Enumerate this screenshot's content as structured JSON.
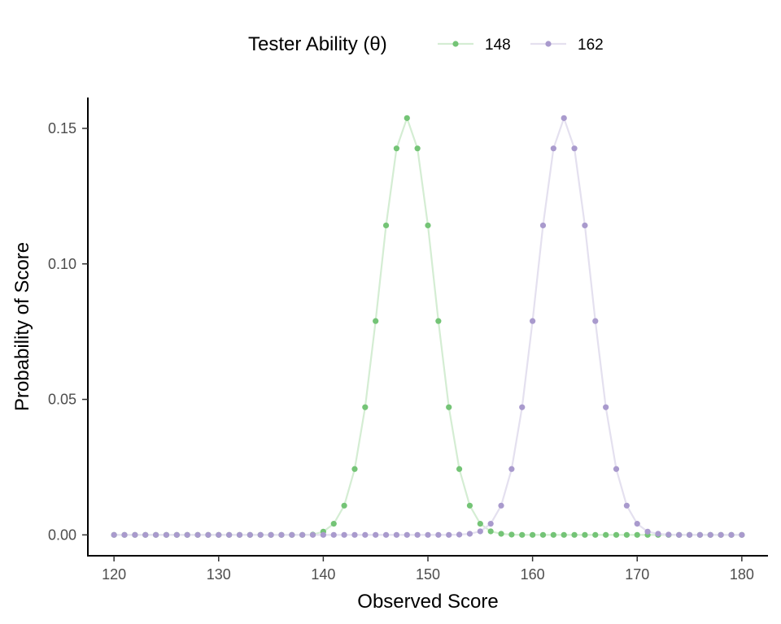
{
  "chart_data": {
    "type": "line",
    "xlabel": "Observed Score",
    "ylabel": "Probability of Score",
    "xlim": [
      117.5,
      182.5
    ],
    "ylim": [
      -0.0077,
      0.1614
    ],
    "x_ticks": [
      120,
      130,
      140,
      150,
      160,
      170,
      180
    ],
    "x_tick_labels": [
      "120",
      "130",
      "140",
      "150",
      "160",
      "170",
      "180"
    ],
    "y_ticks": [
      0,
      0.05,
      0.1,
      0.15
    ],
    "y_tick_labels": [
      "0.00",
      "0.05",
      "0.10",
      "0.15"
    ],
    "grid": false,
    "legend": {
      "title": "Tester Ability (θ)",
      "position": "top"
    },
    "x": [
      120,
      121,
      122,
      123,
      124,
      125,
      126,
      127,
      128,
      129,
      130,
      131,
      132,
      133,
      134,
      135,
      136,
      137,
      138,
      139,
      140,
      141,
      142,
      143,
      144,
      145,
      146,
      147,
      148,
      149,
      150,
      151,
      152,
      153,
      154,
      155,
      156,
      157,
      158,
      159,
      160,
      161,
      162,
      163,
      164,
      165,
      166,
      167,
      168,
      169,
      170,
      171,
      172,
      173,
      174,
      175,
      176,
      177,
      178,
      179,
      180
    ],
    "series": [
      {
        "name": "148",
        "line_color": "#d4edd3",
        "point_color": "#74c476",
        "values": [
          0,
          0,
          0,
          0,
          0,
          0,
          0,
          0,
          0,
          0,
          0,
          0,
          0,
          0,
          0,
          0,
          0,
          0,
          0,
          0.0001,
          0.0012,
          0.0041,
          0.0108,
          0.0243,
          0.0471,
          0.0789,
          0.1142,
          0.1426,
          0.1538,
          0.1426,
          0.1142,
          0.0789,
          0.0471,
          0.0243,
          0.0108,
          0.0041,
          0.0013,
          0.0004,
          0.0001,
          0,
          0,
          0,
          0,
          0,
          0,
          0,
          0,
          0,
          0,
          0,
          0,
          0,
          0,
          0,
          0,
          0,
          0,
          0,
          0,
          0,
          0
        ]
      },
      {
        "name": "162",
        "line_color": "#e4e0ef",
        "point_color": "#a99acd",
        "values": [
          0,
          0,
          0,
          0,
          0,
          0,
          0,
          0,
          0,
          0,
          0,
          0,
          0,
          0,
          0,
          0,
          0,
          0,
          0,
          0,
          0,
          0,
          0,
          0,
          0,
          0,
          0,
          0,
          0,
          0,
          0,
          0,
          0,
          0.0001,
          0.0004,
          0.0013,
          0.0041,
          0.0108,
          0.0243,
          0.0471,
          0.0789,
          0.1142,
          0.1426,
          0.1538,
          0.1426,
          0.1142,
          0.0789,
          0.0471,
          0.0243,
          0.0108,
          0.0041,
          0.0012,
          0.0004,
          0.0001,
          0,
          0,
          0,
          0,
          0,
          0,
          0
        ]
      }
    ]
  }
}
